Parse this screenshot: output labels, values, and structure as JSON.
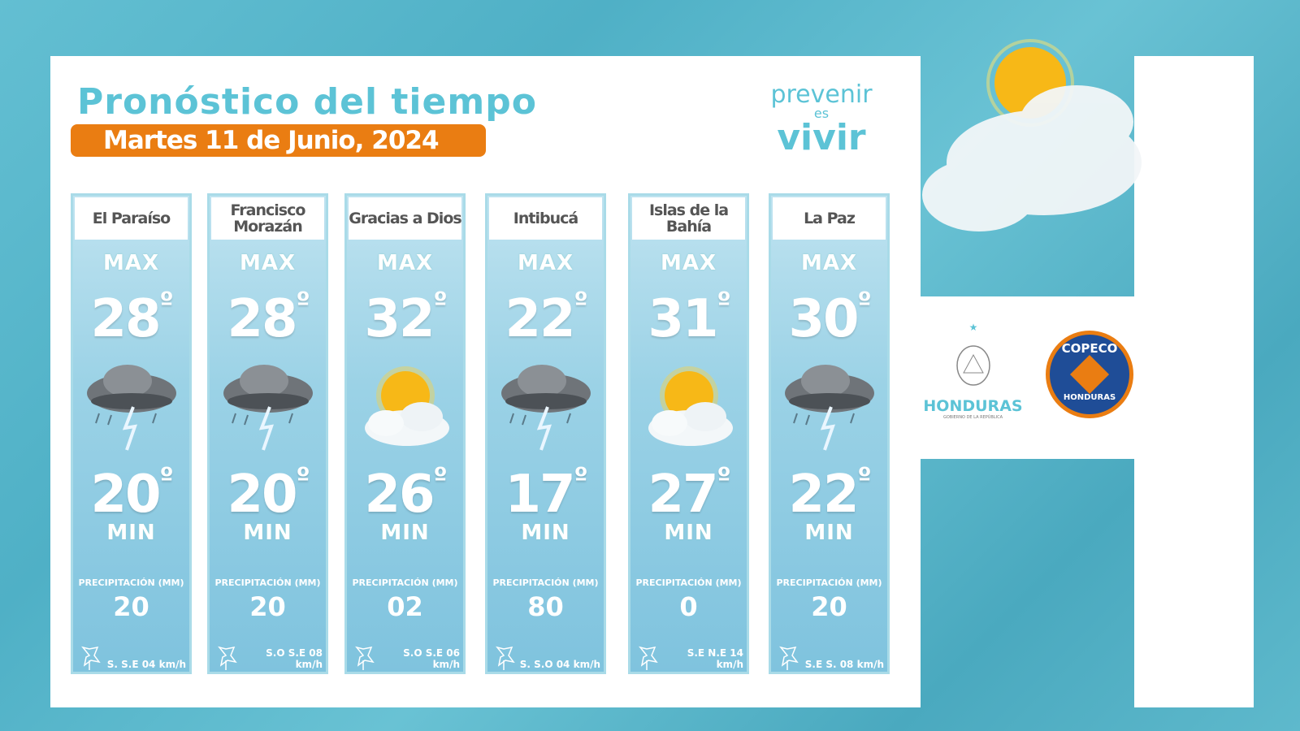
{
  "title": "Pronóstico del tiempo",
  "date": "Martes 11 de Junio, 2024",
  "brand": {
    "line1": "prevenir",
    "line2": "es",
    "line3": "vivir"
  },
  "labels": {
    "max": "MAX",
    "min": "MIN",
    "precip": "PRECIPITACIÓN (MM)"
  },
  "colors": {
    "accent": "#5cc3d6",
    "date_bg": "#ea7d12"
  },
  "regions": [
    {
      "name": "El Paraíso",
      "max": "28",
      "min": "20",
      "icon": "storm-icon",
      "precip": "20",
      "wind": "S.  S.E 04 km/h"
    },
    {
      "name": "Francisco Morazán",
      "max": "28",
      "min": "20",
      "icon": "storm-icon",
      "precip": "20",
      "wind": "S.O S.E  08 km/h"
    },
    {
      "name": "Gracias a Dios",
      "max": "32",
      "min": "26",
      "icon": "sun-cloud-icon",
      "precip": "02",
      "wind": "S.O  S.E 06 km/h"
    },
    {
      "name": "Intibucá",
      "max": "22",
      "min": "17",
      "icon": "storm-icon",
      "precip": "80",
      "wind": "S.  S.O  04 km/h"
    },
    {
      "name": "Islas de la Bahía",
      "max": "31",
      "min": "27",
      "icon": "sun-cloud-icon",
      "precip": "0",
      "wind": "S.E  N.E 14 km/h"
    },
    {
      "name": "La Paz",
      "max": "30",
      "min": "22",
      "icon": "storm-icon",
      "precip": "20",
      "wind": "S.E  S.  08 km/h"
    }
  ],
  "logos": {
    "honduras": "HONDURAS",
    "honduras_sub": "GOBIERNO DE LA REPÚBLICA",
    "copeco": "COPECO",
    "copeco_sub": "HONDURAS"
  }
}
